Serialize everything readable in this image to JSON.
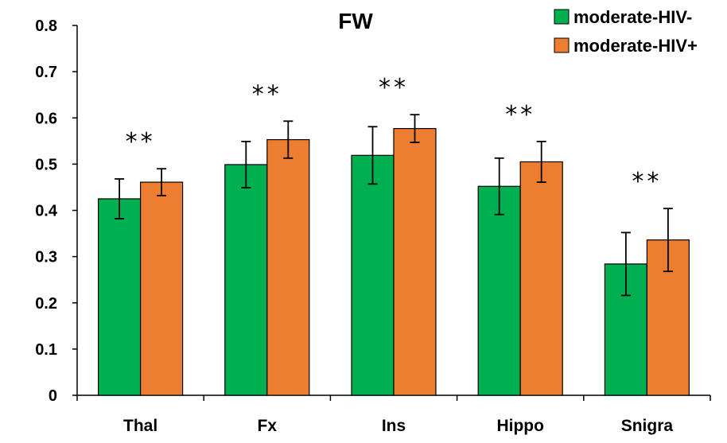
{
  "chart_data": {
    "type": "bar",
    "title": "FW",
    "xlabel": "",
    "ylabel": "",
    "ylim": [
      0,
      0.8
    ],
    "yticks": [
      "0",
      "0.1",
      "0.2",
      "0.3",
      "0.4",
      "0.5",
      "0.6",
      "0.7",
      "0.8"
    ],
    "categories": [
      "Thal",
      "Fx",
      "Ins",
      "Hippo",
      "Snigra"
    ],
    "series": [
      {
        "name": "moderate-HIV-",
        "color": "#00b050",
        "values": [
          0.425,
          0.499,
          0.519,
          0.452,
          0.284
        ],
        "errors": [
          0.043,
          0.05,
          0.062,
          0.061,
          0.068
        ]
      },
      {
        "name": "moderate-HIV+",
        "color": "#ed7d31",
        "values": [
          0.461,
          0.553,
          0.577,
          0.505,
          0.336
        ],
        "errors": [
          0.029,
          0.04,
          0.03,
          0.044,
          0.068
        ]
      }
    ],
    "annotations": [
      "**",
      "**",
      "**",
      "**",
      "**"
    ],
    "legend_position": "top-right"
  }
}
